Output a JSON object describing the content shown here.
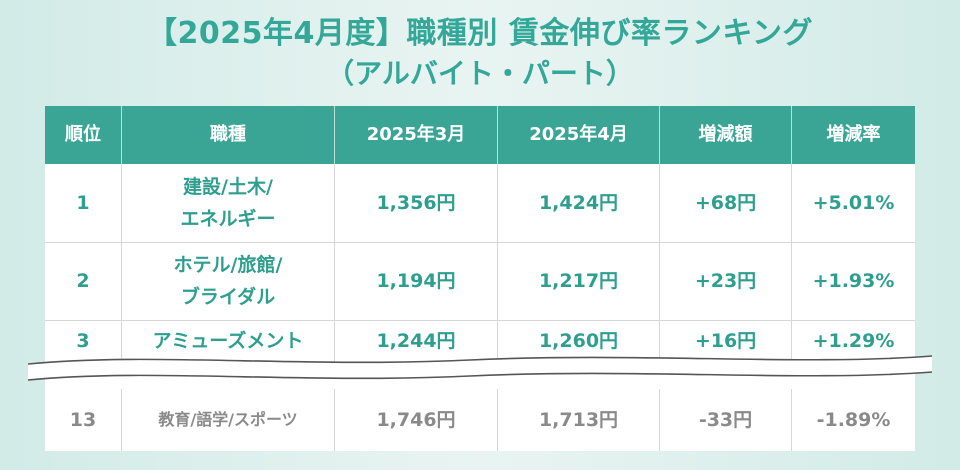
{
  "title": {
    "line1": "【2025年4月度】職種別 賃金伸び率ランキング",
    "line2": "（アルバイト・パート）"
  },
  "table": {
    "headers": [
      "順位",
      "職種",
      "2025年3月",
      "2025年4月",
      "増減額",
      "増減率"
    ],
    "rows": [
      {
        "rank": "1",
        "job_line1": "建設/土木/",
        "job_line2": "エネルギー",
        "mar": "1,356円",
        "apr": "1,424円",
        "diff": "+68円",
        "rate": "+5.01%"
      },
      {
        "rank": "2",
        "job_line1": "ホテル/旅館/",
        "job_line2": "ブライダル",
        "mar": "1,194円",
        "apr": "1,217円",
        "diff": "+23円",
        "rate": "+1.93%"
      },
      {
        "rank": "3",
        "job_line1": "アミューズメント",
        "mar": "1,244円",
        "apr": "1,260円",
        "diff": "+16円",
        "rate": "+1.29%"
      },
      {
        "rank": "13",
        "job_line1": "教育/語学/スポーツ",
        "mar": "1,746円",
        "apr": "1,713円",
        "diff": "-33円",
        "rate": "-1.89%"
      }
    ]
  },
  "colors": {
    "accent": "#33a898",
    "header_bg": "#3aa595",
    "muted_text": "#8a8a8a",
    "background": "#d2ebe7"
  }
}
